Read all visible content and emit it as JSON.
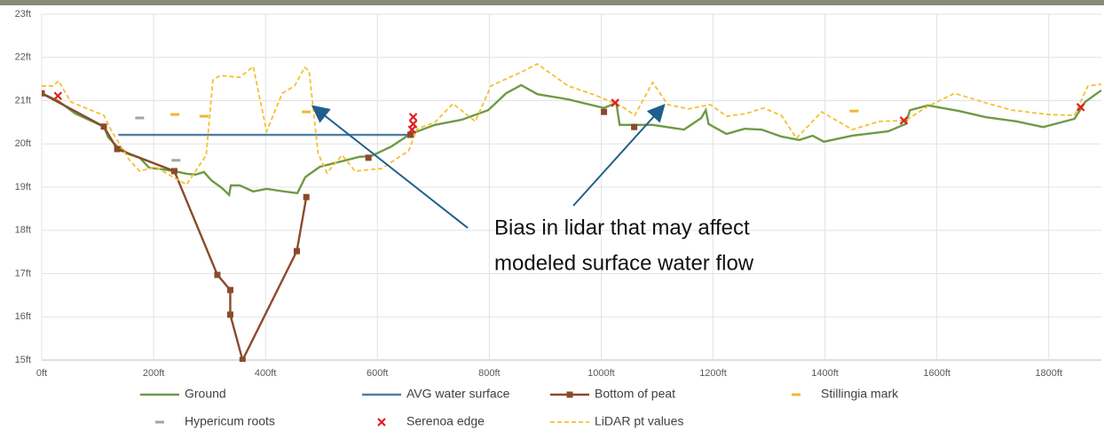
{
  "chart_data": {
    "type": "line",
    "annotations": [
      "Bias in lidar that may affect",
      "modeled surface water flow"
    ],
    "xlim": [
      0,
      1894
    ],
    "ylim": [
      15,
      23
    ],
    "xticks": [
      {
        "value": 0,
        "label": "0ft"
      },
      {
        "value": 200,
        "label": "200ft"
      },
      {
        "value": 400,
        "label": "400ft"
      },
      {
        "value": 600,
        "label": "600ft"
      },
      {
        "value": 800,
        "label": "800ft"
      },
      {
        "value": 1000,
        "label": "1000ft"
      },
      {
        "value": 1200,
        "label": "1200ft"
      },
      {
        "value": 1400,
        "label": "1400ft"
      },
      {
        "value": 1600,
        "label": "1600ft"
      },
      {
        "value": 1800,
        "label": "1800ft"
      }
    ],
    "yticks": [
      {
        "value": 15,
        "label": "15ft"
      },
      {
        "value": 16,
        "label": "16ft"
      },
      {
        "value": 17,
        "label": "17ft"
      },
      {
        "value": 18,
        "label": "18ft"
      },
      {
        "value": 19,
        "label": "19ft"
      },
      {
        "value": 20,
        "label": "20ft"
      },
      {
        "value": 21,
        "label": "21ft"
      },
      {
        "value": 22,
        "label": "22ft"
      },
      {
        "value": 23,
        "label": "23ft"
      }
    ],
    "grid": true,
    "series": [
      {
        "name": "Ground",
        "color": "#6e9a45",
        "style": "line",
        "dashed": false,
        "x": [
          0,
          29,
          60,
          111,
          119,
          135,
          156,
          175,
          192,
          217,
          237,
          259,
          275,
          290,
          303,
          322,
          335,
          338,
          354,
          378,
          402,
          433,
          457,
          471,
          497,
          537,
          568,
          589,
          625,
          659,
          703,
          751,
          798,
          830,
          857,
          886,
          941,
          1005,
          1027,
          1033,
          1092,
          1148,
          1179,
          1187,
          1192,
          1224,
          1256,
          1287,
          1322,
          1354,
          1378,
          1398,
          1449,
          1513,
          1544,
          1552,
          1584,
          1640,
          1687,
          1743,
          1790,
          1846,
          1865,
          1894
        ],
        "values": [
          21.17,
          21.0,
          20.7,
          20.4,
          20.15,
          19.94,
          19.76,
          19.68,
          19.45,
          19.41,
          19.37,
          19.31,
          19.29,
          19.35,
          19.16,
          18.98,
          18.82,
          19.04,
          19.04,
          18.9,
          18.96,
          18.9,
          18.86,
          19.23,
          19.47,
          19.6,
          19.7,
          19.72,
          19.94,
          20.23,
          20.44,
          20.56,
          20.78,
          21.17,
          21.36,
          21.15,
          21.03,
          20.83,
          20.95,
          20.44,
          20.44,
          20.33,
          20.6,
          20.78,
          20.46,
          20.23,
          20.35,
          20.33,
          20.17,
          20.09,
          20.19,
          20.05,
          20.19,
          20.29,
          20.46,
          20.78,
          20.89,
          20.76,
          20.62,
          20.52,
          20.39,
          20.58,
          20.97,
          21.24
        ]
      },
      {
        "name": "AVG water surface",
        "color": "#4f7ea3",
        "style": "line",
        "dashed": false,
        "x": [
          137,
          659
        ],
        "values": [
          20.21,
          20.21
        ]
      },
      {
        "name": "Bottom of peat",
        "color": "#8b4a2b",
        "style": "line",
        "marker": "square",
        "dashed": false,
        "x": [
          0,
          111,
          135,
          237,
          314,
          337,
          337,
          359,
          456,
          473,
          null,
          584,
          null,
          659,
          null,
          1005,
          null,
          1059
        ],
        "values": [
          21.17,
          20.4,
          19.88,
          19.37,
          16.97,
          16.62,
          16.05,
          15.0,
          17.52,
          18.77,
          null,
          19.68,
          null,
          20.21,
          null,
          20.74,
          null,
          20.39
        ]
      },
      {
        "name": "Stillingia mark",
        "color": "#f0b830",
        "style": "marker",
        "marker": "dash",
        "x": [
          238,
          290,
          473,
          1452
        ],
        "values": [
          20.68,
          20.64,
          20.74,
          20.76
        ]
      },
      {
        "name": "Hypericum roots",
        "color": "#a6a6a6",
        "style": "marker",
        "marker": "dash",
        "x": [
          175,
          240
        ],
        "values": [
          20.6,
          19.62
        ]
      },
      {
        "name": "Serenoa edge",
        "color": "#e02020",
        "style": "marker",
        "marker": "x",
        "x": [
          29,
          664,
          664,
          662,
          1025,
          1541,
          1857
        ],
        "values": [
          21.11,
          20.62,
          20.46,
          20.33,
          20.95,
          20.54,
          20.85
        ]
      },
      {
        "name": "LiDAR pt values",
        "color": "#f5c030",
        "style": "line",
        "dashed": true,
        "x": [
          0,
          21,
          30,
          52,
          111,
          127,
          156,
          175,
          203,
          235,
          259,
          294,
          306,
          319,
          354,
          378,
          402,
          430,
          452,
          470,
          478,
          494,
          510,
          537,
          560,
          608,
          632,
          656,
          671,
          703,
          735,
          775,
          803,
          833,
          862,
          886,
          917,
          941,
          989,
          1037,
          1060,
          1092,
          1119,
          1156,
          1195,
          1224,
          1259,
          1290,
          1322,
          1349,
          1394,
          1449,
          1497,
          1544,
          1584,
          1632,
          1687,
          1735,
          1798,
          1846,
          1859,
          1870,
          1894
        ],
        "values": [
          21.34,
          21.34,
          21.46,
          20.97,
          20.66,
          20.25,
          19.64,
          19.37,
          19.47,
          19.23,
          19.06,
          19.74,
          21.48,
          21.58,
          21.54,
          21.79,
          20.29,
          21.17,
          21.34,
          21.77,
          21.69,
          19.78,
          19.33,
          19.74,
          19.37,
          19.43,
          19.64,
          19.84,
          20.35,
          20.5,
          20.93,
          20.52,
          21.34,
          21.52,
          21.69,
          21.85,
          21.56,
          21.34,
          21.13,
          20.87,
          20.66,
          21.42,
          20.91,
          20.81,
          20.91,
          20.64,
          20.7,
          20.83,
          20.66,
          20.13,
          20.74,
          20.33,
          20.52,
          20.54,
          20.87,
          21.17,
          20.95,
          20.78,
          20.68,
          20.66,
          21.03,
          21.34,
          21.38
        ]
      }
    ]
  }
}
